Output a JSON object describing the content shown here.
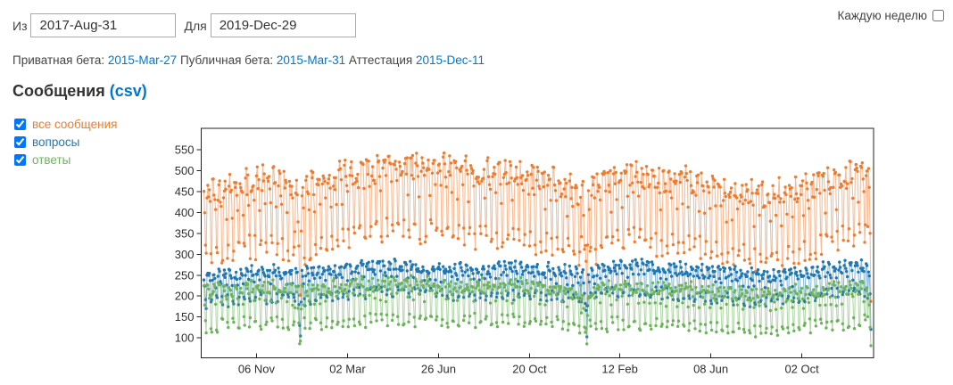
{
  "controls": {
    "from_label": "Из",
    "from_value": "2017-Aug-31",
    "to_label": "Для",
    "to_value": "2019-Dec-29",
    "weekly_label": "Каждую неделю",
    "weekly_checked": false
  },
  "beta_line": {
    "private_label": "Приватная бета:",
    "private_date": "2015-Mar-27",
    "public_label": "Публичная бета:",
    "public_date": "2015-Mar-31",
    "graduation_label": "Аттестация",
    "graduation_date": "2015-Dec-11"
  },
  "section": {
    "title": "Сообщения",
    "csv_link": "(csv)"
  },
  "legend": {
    "items": [
      {
        "label": "все сообщения",
        "color": "#ED7C31",
        "checked": true
      },
      {
        "label": "вопросы",
        "color": "#1F77B4",
        "checked": true
      },
      {
        "label": "ответы",
        "color": "#6CB35B",
        "checked": true
      }
    ]
  },
  "colors": {
    "link": "#0077cc",
    "axis": "#222222",
    "tick_text": "#2e2e2e"
  },
  "chart_data": {
    "type": "line",
    "title": "Сообщения",
    "x_start": "2017-Aug-31",
    "x_end": "2019-Dec-29",
    "n_points": 851,
    "x_tick_days": [
      67,
      183,
      299,
      415,
      530,
      646,
      762
    ],
    "x_tick_labels": [
      "06 Nov",
      "02 Mar",
      "26 Jun",
      "20 Oct",
      "12 Feb",
      "08 Jun",
      "02 Oct"
    ],
    "y_ticks": [
      100,
      150,
      200,
      250,
      300,
      350,
      400,
      450,
      500,
      550
    ],
    "ylim": [
      52,
      601
    ],
    "grid": false,
    "legend_position": "outside-top-left",
    "seed": 42,
    "anchor_days": [
      0,
      30,
      60,
      90,
      120,
      150,
      180,
      210,
      240,
      270,
      300,
      330,
      360,
      390,
      420,
      450,
      480,
      510,
      540,
      570,
      600,
      630,
      660,
      690,
      720,
      750,
      780,
      810,
      840,
      850
    ],
    "weekday_pattern": [
      0.8,
      0.3,
      -0.9,
      -1.0,
      0.9,
      1.0,
      0.85
    ],
    "series": [
      {
        "name": "все сообщения",
        "color": "#ED7C31",
        "weekday_amplitude": 85,
        "noise": 30,
        "anchors": [
          400,
          410,
          420,
          425,
          405,
          425,
          440,
          452,
          475,
          462,
          452,
          450,
          446,
          446,
          436,
          425,
          402,
          420,
          442,
          436,
          426,
          416,
          406,
          396,
          386,
          400,
          420,
          436,
          452,
          455
        ]
      },
      {
        "name": "вопросы",
        "color": "#1F77B4",
        "weekday_amplitude": 34,
        "noise": 14,
        "anchors": [
          225,
          230,
          235,
          238,
          230,
          240,
          245,
          250,
          252,
          248,
          245,
          245,
          242,
          248,
          245,
          242,
          232,
          245,
          255,
          250,
          245,
          240,
          235,
          232,
          228,
          235,
          242,
          248,
          252,
          250
        ]
      },
      {
        "name": "ответы",
        "color": "#6CB35B",
        "weekday_amplitude": 46,
        "noise": 16,
        "anchors": [
          185,
          190,
          193,
          195,
          185,
          192,
          196,
          200,
          202,
          200,
          198,
          200,
          196,
          198,
          194,
          190,
          182,
          188,
          192,
          190,
          188,
          185,
          182,
          178,
          172,
          180,
          186,
          190,
          194,
          192
        ]
      }
    ],
    "events": [
      {
        "day": 116,
        "factor": 0.78
      },
      {
        "day": 122,
        "factor": 0.66
      },
      {
        "day": 123,
        "factor": 0.42
      },
      {
        "day": 124,
        "factor": 0.72
      },
      {
        "day": 481,
        "factor": 0.75
      },
      {
        "day": 487,
        "factor": 0.62
      },
      {
        "day": 488,
        "factor": 0.4
      },
      {
        "day": 489,
        "factor": 0.7
      },
      {
        "day": 846,
        "factor": 0.72
      },
      {
        "day": 850,
        "factor": 0.55
      }
    ]
  }
}
